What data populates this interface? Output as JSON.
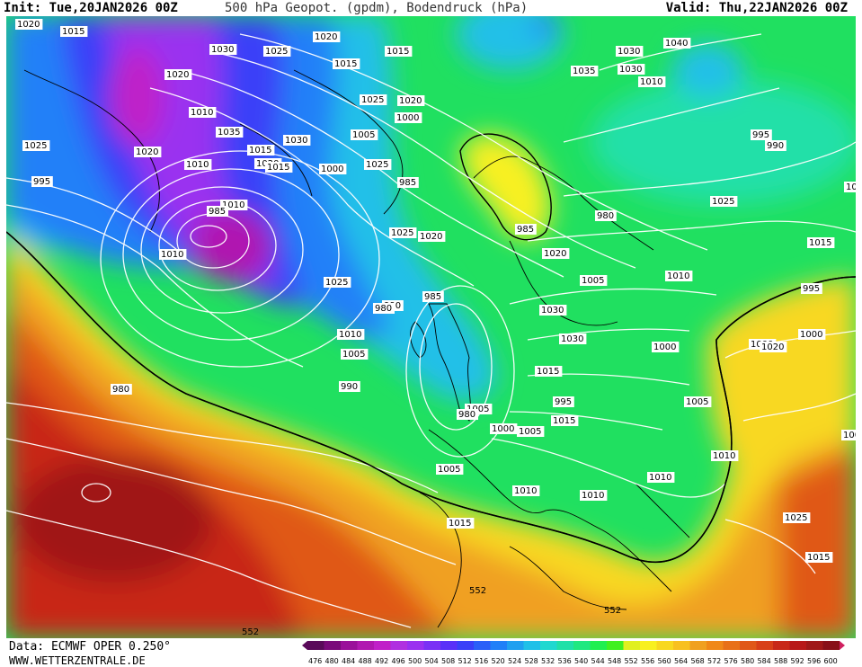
{
  "header": {
    "init": "Init: Tue,20JAN2026 00Z",
    "title": "500 hPa Geopot. (gpdm), Bodendruck (hPa)",
    "valid": "Valid: Thu,22JAN2026 00Z"
  },
  "footer": {
    "source": "Data: ECMWF OPER 0.250°",
    "website": "WWW.WETTERZENTRALE.DE"
  },
  "colorbar": {
    "values": [
      "476",
      "480",
      "484",
      "488",
      "492",
      "496",
      "500",
      "504",
      "508",
      "512",
      "516",
      "520",
      "524",
      "528",
      "532",
      "536",
      "540",
      "544",
      "548",
      "552",
      "556",
      "560",
      "564",
      "568",
      "572",
      "576",
      "580",
      "584",
      "588",
      "592",
      "596",
      "600"
    ],
    "colors": [
      "#5a0a5a",
      "#7a0a7a",
      "#9a109a",
      "#b018b0",
      "#c020c8",
      "#b030e0",
      "#9a30f0",
      "#7a30f5",
      "#5a30f8",
      "#3a40f8",
      "#2a60f8",
      "#2080f8",
      "#20a0f0",
      "#20c0e8",
      "#20d8d0",
      "#20e0a8",
      "#20e880",
      "#20ef50",
      "#40f020",
      "#e0f020",
      "#f8f020",
      "#f8d820",
      "#f8c020",
      "#f0a020",
      "#f08818",
      "#e87018",
      "#e05818",
      "#d84018",
      "#c82818",
      "#b81818",
      "#a01818",
      "#881018"
    ]
  },
  "map": {
    "center_lows": [
      "985",
      "980",
      "980"
    ],
    "isobar_labels": [
      "1020",
      "1015",
      "1030",
      "1025",
      "1020",
      "1015",
      "1030",
      "1040",
      "1020",
      "1015",
      "1010",
      "1025",
      "1020",
      "1035",
      "1030",
      "1010",
      "1005",
      "1000",
      "995",
      "990",
      "1025",
      "1020",
      "1035",
      "1030",
      "1015",
      "1010",
      "1020",
      "1015",
      "1025",
      "985",
      "995",
      "1000",
      "1030",
      "1025",
      "1010",
      "1025",
      "1020",
      "985",
      "980",
      "1015",
      "1010",
      "1020",
      "1025",
      "990",
      "985",
      "1005",
      "1010",
      "1030",
      "995",
      "1000",
      "1020",
      "1000",
      "1010",
      "1030",
      "1000",
      "1005",
      "1015",
      "980",
      "990",
      "995",
      "1005",
      "1005",
      "1000",
      "1005",
      "1015",
      "1000",
      "1005",
      "1010",
      "1010",
      "1010",
      "1010",
      "1015",
      "1025",
      "1015",
      "552",
      "552",
      "552"
    ]
  }
}
